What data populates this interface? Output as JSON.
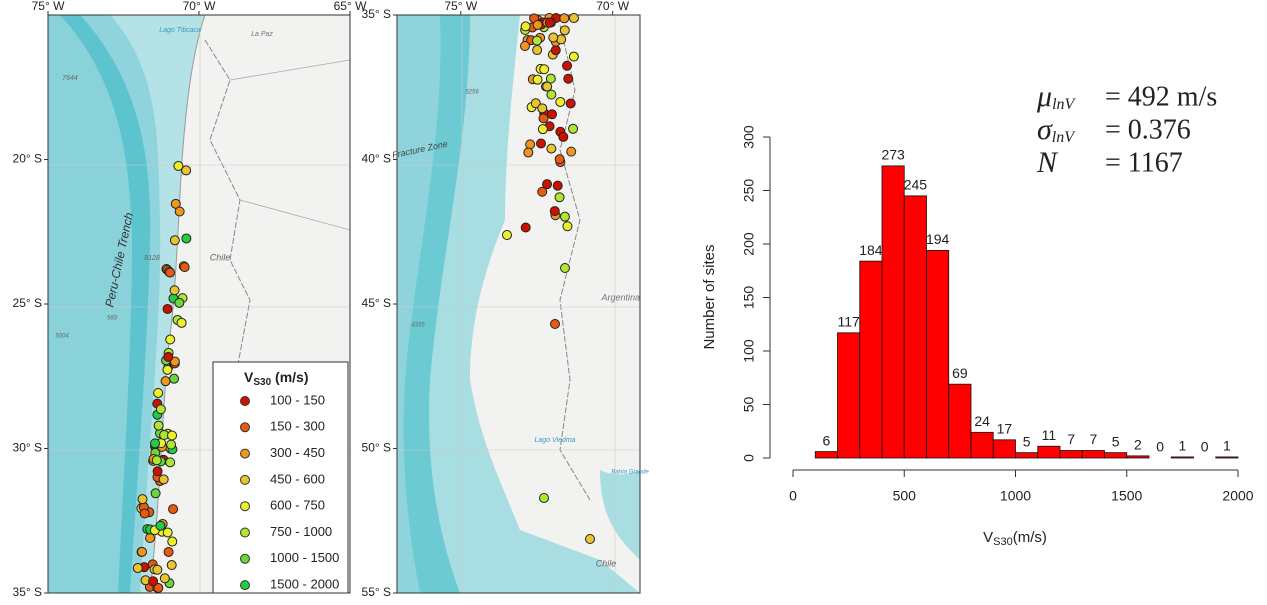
{
  "maps": [
    {
      "xticks": [
        {
          "value": -75,
          "label": "75° W"
        },
        {
          "value": -70,
          "label": "70° W"
        },
        {
          "value": -65,
          "label": "65° W"
        }
      ],
      "yticks": [
        {
          "value": -20,
          "label": "20° S"
        },
        {
          "value": -25,
          "label": "25° S"
        },
        {
          "value": -30,
          "label": "30° S"
        },
        {
          "value": -35,
          "label": "35° S"
        }
      ],
      "xlim": [
        -75,
        -65
      ],
      "ylim": [
        -35,
        -15
      ],
      "labels": [
        "Lago Titicaca",
        "La Paz",
        "Peru-Chile Trench",
        "Chile",
        "7644",
        "8128",
        "583",
        "5004"
      ]
    },
    {
      "xticks": [
        {
          "value": -75,
          "label": "75° W"
        },
        {
          "value": -70,
          "label": "70° W"
        }
      ],
      "yticks": [
        {
          "value": -35,
          "label": "35° S"
        },
        {
          "value": -40,
          "label": "40° S"
        },
        {
          "value": -45,
          "label": "45° S"
        },
        {
          "value": -50,
          "label": "50° S"
        },
        {
          "value": -55,
          "label": "55° S"
        }
      ],
      "xlim": [
        -77.1,
        -69.1
      ],
      "ylim": [
        -55,
        -35
      ],
      "labels": [
        "Fracture Zone",
        "Argentina",
        "Lago Viedma",
        "Bahía Grande",
        "Chile",
        "5256",
        "4335"
      ]
    }
  ],
  "legend": {
    "title_main": "V",
    "title_sub": "S30",
    "title_unit": " (m/s)",
    "items": [
      {
        "label": "100 - 150",
        "color": "#cc1100"
      },
      {
        "label": "150 - 300",
        "color": "#e85a10"
      },
      {
        "label": "300 - 450",
        "color": "#f0961e"
      },
      {
        "label": "450 - 600",
        "color": "#e8c530"
      },
      {
        "label": "600 - 750",
        "color": "#eef02a"
      },
      {
        "label": "750 - 1000",
        "color": "#aee632"
      },
      {
        "label": "1000 - 1500",
        "color": "#66d83c"
      },
      {
        "label": "1500 - 2000",
        "color": "#22cc44"
      }
    ]
  },
  "chart_data": {
    "type": "histogram",
    "bins": [
      100,
      200,
      300,
      400,
      500,
      600,
      700,
      800,
      900,
      1000,
      1100,
      1200,
      1300,
      1400,
      1500,
      1600,
      1700,
      1800,
      1900,
      2000
    ],
    "values": [
      6,
      117,
      184,
      273,
      245,
      194,
      69,
      24,
      17,
      5,
      11,
      7,
      7,
      5,
      2,
      0,
      1,
      0,
      1
    ],
    "color": "#ff0000",
    "xlim": [
      0,
      2000
    ],
    "xticks": [
      0,
      500,
      1000,
      1500,
      2000
    ],
    "ylim": [
      0,
      300
    ],
    "yticks": [
      0,
      50,
      100,
      150,
      200,
      250,
      300
    ],
    "y_label": "Number of sites",
    "x_label_main": "V",
    "x_label_sub": "S30",
    "x_label_unit": "(m/s)",
    "annotations": [
      {
        "symbol": "μ",
        "sub": "lnV",
        "text": "= 492 m/s"
      },
      {
        "symbol": "σ",
        "sub": "lnV",
        "text": "= 0.376"
      },
      {
        "symbol": "N",
        "sub": "",
        "text": "= 1167"
      }
    ]
  }
}
